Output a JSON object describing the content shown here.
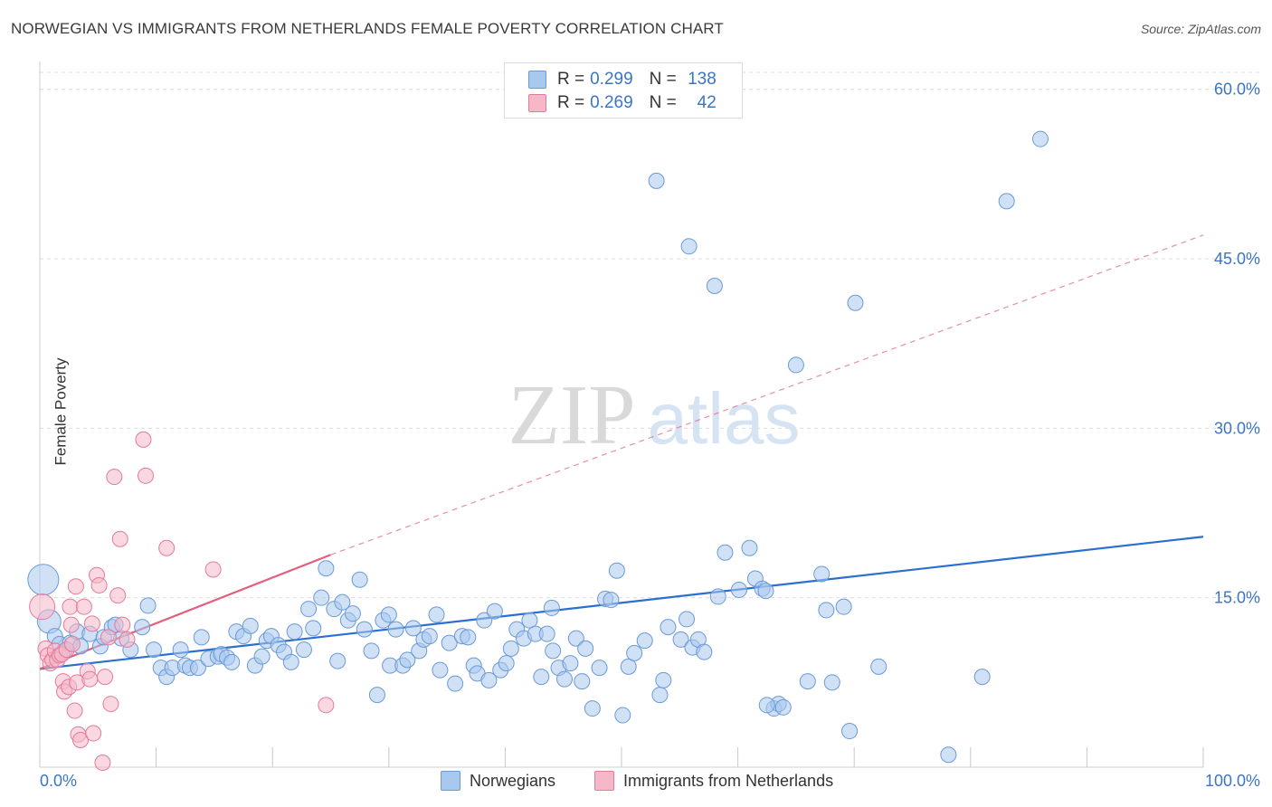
{
  "header": {
    "title": "NORWEGIAN VS IMMIGRANTS FROM NETHERLANDS FEMALE POVERTY CORRELATION CHART",
    "source": "Source: ZipAtlas.com"
  },
  "watermark": {
    "zip": "ZIP",
    "atlas": "atlas"
  },
  "legend": {
    "r_label": "R =",
    "n_label": "N =",
    "series": [
      {
        "name": "Norwegians",
        "r": "0.299",
        "n": "138"
      },
      {
        "name": "Immigrants from Netherlands",
        "r": "0.269",
        "n": "42"
      }
    ]
  },
  "colors": {
    "blue_fill": "#a9c8ee",
    "blue_stroke": "#6a9ad8",
    "blue_line": "#2b6fd0",
    "pink_fill": "#f6b8c9",
    "pink_stroke": "#e57a9a",
    "pink_line": "#e0607e",
    "axis_text": "#3a75c4",
    "grid": "#dcdcdc"
  },
  "chart_data": {
    "type": "scatter",
    "title": "NORWEGIAN VS IMMIGRANTS FROM NETHERLANDS FEMALE POVERTY CORRELATION CHART",
    "xlabel": "",
    "ylabel": "Female Poverty",
    "xlim": [
      0,
      100
    ],
    "ylim": [
      0,
      60
    ],
    "x_tick_labels": [
      "0.0%",
      "100.0%"
    ],
    "y_ticks": [
      15,
      30,
      45,
      60
    ],
    "y_tick_labels": [
      "15.0%",
      "30.0%",
      "45.0%",
      "60.0%"
    ],
    "grid": true,
    "series": [
      {
        "name": "Norwegians",
        "r": 0.299,
        "n": 138,
        "trend": {
          "x": [
            0,
            100
          ],
          "y": [
            8.7,
            20.4
          ],
          "style": "solid"
        },
        "points": [
          [
            0.3,
            16.6
          ],
          [
            0.8,
            12.9
          ],
          [
            1.3,
            11.6
          ],
          [
            1.7,
            10.9
          ],
          [
            2.1,
            10.3
          ],
          [
            2.6,
            11.0
          ],
          [
            3.2,
            12.0
          ],
          [
            3.5,
            10.7
          ],
          [
            4.3,
            11.8
          ],
          [
            5.2,
            10.7
          ],
          [
            5.5,
            11.5
          ],
          [
            6.2,
            12.4
          ],
          [
            6.5,
            12.6
          ],
          [
            7.0,
            11.4
          ],
          [
            7.8,
            10.4
          ],
          [
            8.8,
            12.4
          ],
          [
            9.3,
            14.3
          ],
          [
            9.8,
            10.4
          ],
          [
            10.4,
            8.8
          ],
          [
            10.9,
            8.0
          ],
          [
            11.4,
            8.8
          ],
          [
            12.1,
            10.4
          ],
          [
            12.5,
            9.0
          ],
          [
            12.9,
            8.8
          ],
          [
            13.6,
            8.8
          ],
          [
            13.9,
            11.5
          ],
          [
            14.5,
            9.6
          ],
          [
            15.3,
            9.8
          ],
          [
            15.6,
            10.0
          ],
          [
            16.1,
            9.7
          ],
          [
            16.5,
            9.3
          ],
          [
            16.9,
            12.0
          ],
          [
            17.5,
            11.6
          ],
          [
            18.1,
            12.5
          ],
          [
            18.5,
            9.0
          ],
          [
            19.1,
            9.8
          ],
          [
            19.5,
            11.2
          ],
          [
            19.9,
            11.6
          ],
          [
            20.5,
            10.8
          ],
          [
            21.0,
            10.2
          ],
          [
            21.6,
            9.3
          ],
          [
            21.9,
            12.0
          ],
          [
            22.7,
            10.4
          ],
          [
            23.1,
            14.0
          ],
          [
            23.5,
            12.3
          ],
          [
            24.2,
            15.0
          ],
          [
            24.6,
            17.6
          ],
          [
            25.3,
            14.0
          ],
          [
            25.6,
            9.4
          ],
          [
            26.0,
            14.6
          ],
          [
            26.5,
            13.0
          ],
          [
            26.9,
            13.6
          ],
          [
            27.5,
            16.6
          ],
          [
            27.9,
            12.2
          ],
          [
            28.5,
            10.3
          ],
          [
            29.0,
            6.4
          ],
          [
            29.5,
            13.0
          ],
          [
            30.1,
            9.0
          ],
          [
            30.6,
            12.2
          ],
          [
            31.2,
            9.0
          ],
          [
            31.6,
            9.5
          ],
          [
            32.1,
            12.3
          ],
          [
            32.6,
            10.3
          ],
          [
            33.0,
            11.3
          ],
          [
            33.5,
            11.6
          ],
          [
            34.1,
            13.5
          ],
          [
            34.4,
            8.6
          ],
          [
            35.2,
            11.0
          ],
          [
            35.7,
            7.4
          ],
          [
            36.3,
            11.6
          ],
          [
            36.8,
            11.5
          ],
          [
            37.3,
            9.0
          ],
          [
            37.6,
            8.3
          ],
          [
            38.2,
            13.0
          ],
          [
            38.6,
            7.7
          ],
          [
            39.1,
            13.8
          ],
          [
            39.6,
            8.6
          ],
          [
            40.1,
            9.2
          ],
          [
            40.5,
            10.5
          ],
          [
            41.0,
            12.2
          ],
          [
            41.6,
            11.4
          ],
          [
            42.1,
            13.0
          ],
          [
            42.6,
            11.8
          ],
          [
            43.1,
            8.0
          ],
          [
            43.6,
            11.8
          ],
          [
            44.1,
            10.3
          ],
          [
            44.6,
            8.8
          ],
          [
            45.1,
            7.8
          ],
          [
            45.6,
            9.2
          ],
          [
            46.1,
            11.4
          ],
          [
            46.6,
            7.6
          ],
          [
            46.9,
            10.5
          ],
          [
            47.5,
            5.2
          ],
          [
            48.1,
            8.8
          ],
          [
            48.6,
            14.9
          ],
          [
            49.1,
            14.8
          ],
          [
            49.6,
            17.4
          ],
          [
            50.1,
            4.6
          ],
          [
            50.6,
            8.9
          ],
          [
            51.1,
            10.1
          ],
          [
            52.0,
            11.2
          ],
          [
            53.0,
            51.9
          ],
          [
            53.3,
            6.4
          ],
          [
            53.6,
            7.7
          ],
          [
            54.0,
            12.4
          ],
          [
            55.1,
            11.3
          ],
          [
            55.6,
            13.1
          ],
          [
            55.8,
            46.1
          ],
          [
            56.1,
            10.6
          ],
          [
            56.6,
            11.3
          ],
          [
            57.1,
            10.2
          ],
          [
            58.0,
            42.6
          ],
          [
            58.3,
            15.1
          ],
          [
            58.9,
            19.0
          ],
          [
            60.1,
            15.7
          ],
          [
            61.0,
            19.4
          ],
          [
            61.5,
            16.7
          ],
          [
            62.1,
            15.8
          ],
          [
            62.4,
            15.6
          ],
          [
            63.1,
            5.2
          ],
          [
            63.5,
            5.6
          ],
          [
            63.9,
            5.3
          ],
          [
            65.0,
            35.6
          ],
          [
            66.0,
            7.6
          ],
          [
            67.2,
            17.1
          ],
          [
            67.6,
            13.9
          ],
          [
            68.1,
            7.5
          ],
          [
            69.1,
            14.2
          ],
          [
            69.6,
            3.2
          ],
          [
            70.1,
            41.1
          ],
          [
            72.1,
            8.9
          ],
          [
            78.1,
            1.1
          ],
          [
            81.0,
            8.0
          ],
          [
            83.1,
            50.1
          ],
          [
            86.0,
            55.6
          ],
          [
            62.5,
            5.5
          ],
          [
            44.0,
            14.1
          ],
          [
            30.0,
            13.5
          ]
        ]
      },
      {
        "name": "Immigrants from Netherlands",
        "r": 0.269,
        "n": 42,
        "trend": {
          "x": [
            0,
            25
          ],
          "y": [
            8.7,
            18.8
          ],
          "style": "solid",
          "extension": {
            "x": [
              25,
              100
            ],
            "y": [
              18.8,
              47.1
            ],
            "style": "dashed"
          }
        },
        "points": [
          [
            0.2,
            14.2
          ],
          [
            0.5,
            10.5
          ],
          [
            0.7,
            9.9
          ],
          [
            0.9,
            9.2
          ],
          [
            1.1,
            9.5
          ],
          [
            1.3,
            10.3
          ],
          [
            1.5,
            9.5
          ],
          [
            1.7,
            9.9
          ],
          [
            1.9,
            10.0
          ],
          [
            2.0,
            7.6
          ],
          [
            2.1,
            6.7
          ],
          [
            2.3,
            10.4
          ],
          [
            2.5,
            7.1
          ],
          [
            2.6,
            14.2
          ],
          [
            2.7,
            12.6
          ],
          [
            2.8,
            10.9
          ],
          [
            3.0,
            5.0
          ],
          [
            3.1,
            16.0
          ],
          [
            3.2,
            7.5
          ],
          [
            3.3,
            2.9
          ],
          [
            3.5,
            2.4
          ],
          [
            3.8,
            14.2
          ],
          [
            4.1,
            8.5
          ],
          [
            4.3,
            7.8
          ],
          [
            4.6,
            3.0
          ],
          [
            4.9,
            17.0
          ],
          [
            5.1,
            16.1
          ],
          [
            5.4,
            0.4
          ],
          [
            5.6,
            8.0
          ],
          [
            5.9,
            11.5
          ],
          [
            6.1,
            5.6
          ],
          [
            6.4,
            25.7
          ],
          [
            6.7,
            15.2
          ],
          [
            6.9,
            20.2
          ],
          [
            7.1,
            12.6
          ],
          [
            7.5,
            11.3
          ],
          [
            8.9,
            29.0
          ],
          [
            9.1,
            25.8
          ],
          [
            10.9,
            19.4
          ],
          [
            14.9,
            17.5
          ],
          [
            24.6,
            5.5
          ],
          [
            4.5,
            12.7
          ]
        ]
      }
    ]
  }
}
